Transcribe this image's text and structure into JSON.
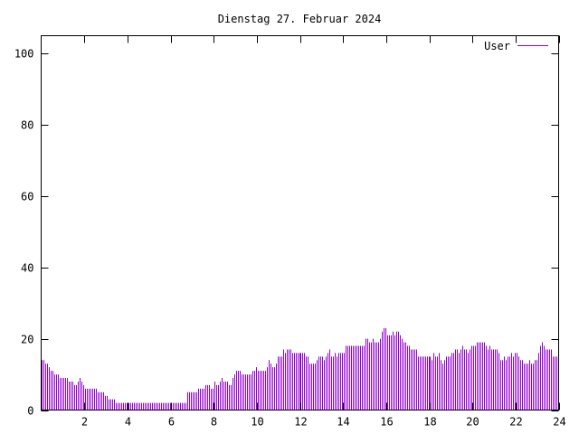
{
  "chart_data": {
    "type": "bar",
    "title": "Dienstag 27. Februar 2024",
    "xlabel": "",
    "ylabel": "",
    "xlim": [
      0,
      24
    ],
    "ylim": [
      0,
      105
    ],
    "x_ticks": [
      2,
      4,
      6,
      8,
      10,
      12,
      14,
      16,
      18,
      20,
      22,
      24
    ],
    "y_ticks": [
      0,
      20,
      40,
      60,
      80,
      100
    ],
    "grid": false,
    "legend_position": "top-right",
    "series": [
      {
        "name": "User",
        "color": "#9400d3",
        "interval_minutes": 5,
        "values": [
          14,
          14,
          13,
          13,
          12,
          11,
          11,
          10,
          10,
          10,
          9,
          9,
          9,
          9,
          9,
          8,
          8,
          8,
          7,
          7,
          8,
          9,
          8,
          7,
          6,
          6,
          6,
          6,
          6,
          6,
          6,
          5,
          5,
          5,
          5,
          4,
          4,
          3,
          3,
          3,
          3,
          2,
          2,
          2,
          2,
          2,
          2,
          2,
          2,
          2,
          2,
          2,
          2,
          2,
          2,
          2,
          2,
          2,
          2,
          2,
          2,
          2,
          2,
          2,
          2,
          2,
          2,
          2,
          2,
          2,
          2,
          2,
          2,
          2,
          2,
          2,
          2,
          2,
          2,
          2,
          2,
          5,
          5,
          5,
          5,
          5,
          5,
          6,
          6,
          6,
          6,
          7,
          7,
          7,
          6,
          6,
          8,
          7,
          7,
          8,
          9,
          8,
          8,
          8,
          7,
          7,
          9,
          10,
          11,
          11,
          11,
          10,
          10,
          10,
          10,
          10,
          10,
          11,
          11,
          12,
          11,
          11,
          11,
          11,
          11,
          12,
          14,
          13,
          12,
          12,
          13,
          15,
          15,
          15,
          17,
          16,
          17,
          17,
          17,
          16,
          16,
          16,
          16,
          16,
          16,
          16,
          16,
          15,
          15,
          13,
          13,
          13,
          13,
          14,
          15,
          15,
          15,
          14,
          15,
          16,
          17,
          15,
          15,
          16,
          15,
          16,
          16,
          16,
          16,
          18,
          18,
          18,
          18,
          18,
          18,
          18,
          18,
          18,
          18,
          18,
          20,
          20,
          19,
          19,
          20,
          19,
          19,
          19,
          20,
          22,
          23,
          23,
          21,
          21,
          21,
          22,
          21,
          22,
          22,
          21,
          20,
          19,
          19,
          18,
          18,
          17,
          17,
          17,
          17,
          15,
          15,
          15,
          15,
          15,
          15,
          15,
          15,
          14,
          16,
          15,
          15,
          16,
          14,
          13,
          14,
          15,
          15,
          15,
          16,
          16,
          17,
          17,
          16,
          17,
          18,
          17,
          17,
          16,
          17,
          18,
          18,
          18,
          19,
          19,
          19,
          19,
          19,
          18,
          17,
          18,
          17,
          17,
          17,
          17,
          16,
          14,
          14,
          15,
          14,
          15,
          15,
          16,
          15,
          16,
          16,
          15,
          14,
          14,
          13,
          13,
          13,
          14,
          13,
          13,
          14,
          14,
          16,
          18,
          19,
          18,
          17,
          17,
          17,
          17,
          15,
          15,
          15,
          15
        ]
      }
    ]
  }
}
